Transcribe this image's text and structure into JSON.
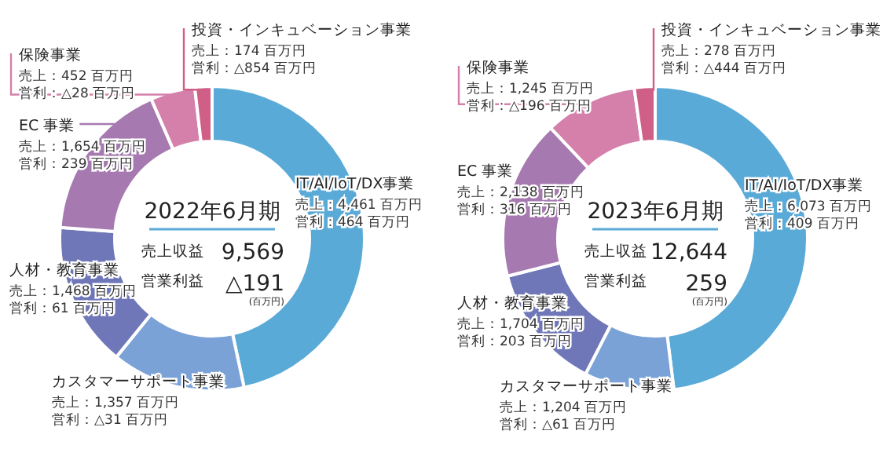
{
  "chart_data": [
    {
      "type": "donut",
      "title": "2022年6月期",
      "categories": [
        "IT/AI/IoT/DX事業",
        "カスタマーサポート事業",
        "人材・教育事業",
        "EC 事業",
        "保険事業",
        "投資・インキュベーション事業"
      ],
      "values": [
        4461,
        1357,
        1468,
        1654,
        452,
        174
      ],
      "colors": [
        "#5aaad8",
        "#7ba2d6",
        "#6f77b8",
        "#a679b0",
        "#d480ab",
        "#cf5f86"
      ],
      "value_labels": [
        "売上：4,461 百万円",
        "売上：1,357 百万円",
        "売上：1,468 百万円",
        "売上：1,654 百万円",
        "売上：452 百万円",
        "売上：174 百万円"
      ],
      "annotations": [
        "売上収益",
        "9,569",
        "営業利益",
        "△191",
        "(百万円)",
        "営利：464 百万円",
        "営利：△31 百万円",
        "営利：61 百万円",
        "営利：239 百万円",
        "営利：△28 百万円",
        "営利：△854 百万円"
      ]
    },
    {
      "type": "donut",
      "title": "2023年6月期",
      "categories": [
        "IT/AI/IoT/DX事業",
        "カスタマーサポート事業",
        "人材・教育事業",
        "EC 事業",
        "保険事業",
        "投資・インキュベーション事業"
      ],
      "values": [
        6073,
        1204,
        1704,
        2138,
        1245,
        278
      ],
      "colors": [
        "#5aaad8",
        "#7ba2d6",
        "#6f77b8",
        "#a679b0",
        "#d480ab",
        "#cf5f86"
      ],
      "value_labels": [
        "売上：6,073 百万円",
        "売上：1,204 百万円",
        "売上：1,704 百万円",
        "売上：2,138 百万円",
        "売上：1,245 百万円",
        "売上：278 百万円"
      ],
      "annotations": [
        "売上収益",
        "12,644",
        "営業利益",
        "259",
        "(百万円)",
        "営利：409 百万円",
        "営利：△61 百万円",
        "営利：203 百万円",
        "営利：316 百万円",
        "営利：△196 百万円",
        "営利：△444 百万円"
      ]
    }
  ]
}
